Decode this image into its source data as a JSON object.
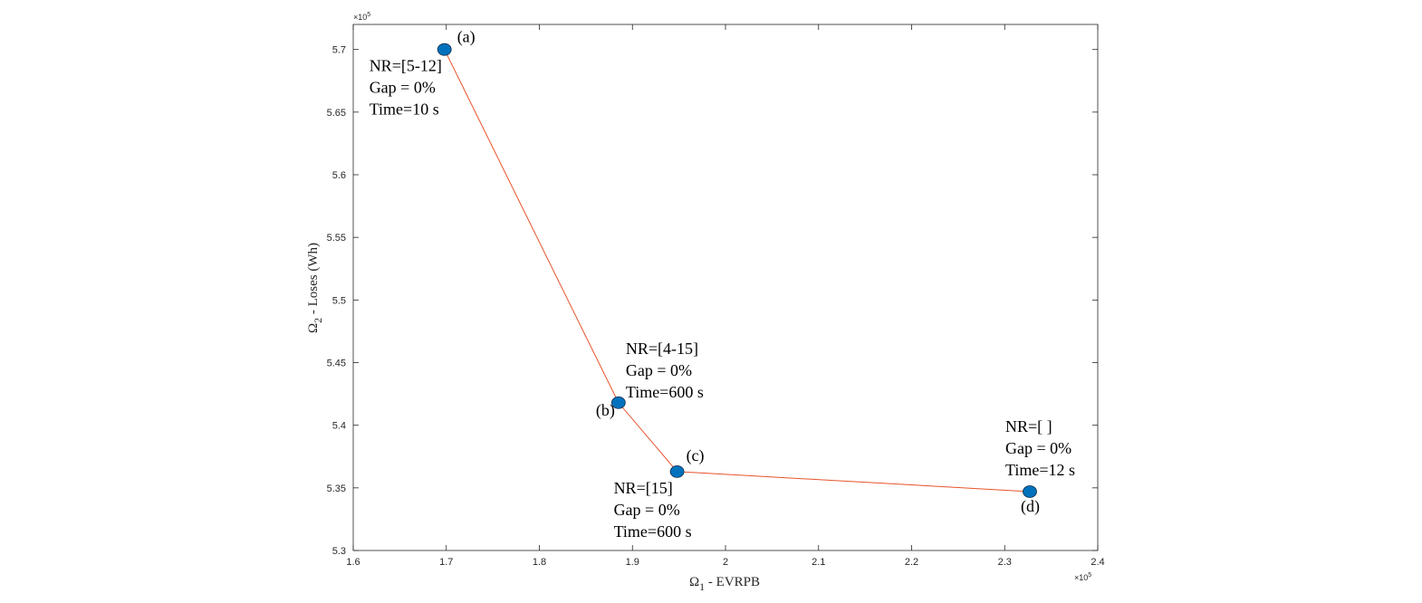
{
  "chart_data": {
    "type": "line",
    "title": "",
    "xlabel_symbol": "Ω",
    "xlabel_sub": "1",
    "xlabel_rest": " - EVRPB",
    "ylabel_symbol": "Ω",
    "ylabel_sub": "2",
    "ylabel_rest": " - Loses (Wh)",
    "x_exponent": "×10",
    "x_exponent_power": "5",
    "y_exponent": "×10",
    "y_exponent_power": "5",
    "xlim": [
      1.6,
      2.4
    ],
    "ylim": [
      5.3,
      5.72
    ],
    "xticks": [
      "1.6",
      "1.7",
      "1.8",
      "1.9",
      "2",
      "2.1",
      "2.2",
      "2.3",
      "2.4"
    ],
    "xtick_values": [
      1.6,
      1.7,
      1.8,
      1.9,
      2.0,
      2.1,
      2.2,
      2.3,
      2.4
    ],
    "yticks": [
      "5.3",
      "5.35",
      "5.4",
      "5.45",
      "5.5",
      "5.55",
      "5.6",
      "5.65",
      "5.7"
    ],
    "ytick_values": [
      5.3,
      5.35,
      5.4,
      5.45,
      5.5,
      5.55,
      5.6,
      5.65,
      5.7
    ],
    "line_color": "#e8532a",
    "marker_color": "#0072bd",
    "points": [
      {
        "label": "(a)",
        "x": 1.698,
        "y": 5.7,
        "annotation": [
          "NR=[5-12]",
          "Gap = 0%",
          "Time=10 s"
        ]
      },
      {
        "label": "(b)",
        "x": 1.885,
        "y": 5.418,
        "annotation": [
          "NR=[4-15]",
          "Gap = 0%",
          "Time=600 s"
        ]
      },
      {
        "label": "(c)",
        "x": 1.948,
        "y": 5.363,
        "annotation": [
          "NR=[15]",
          "Gap = 0%",
          "Time=600 s"
        ]
      },
      {
        "label": "(d)",
        "x": 2.327,
        "y": 5.347,
        "annotation": [
          "NR=[ ]",
          "Gap = 0%",
          "Time=12 s"
        ]
      }
    ]
  }
}
